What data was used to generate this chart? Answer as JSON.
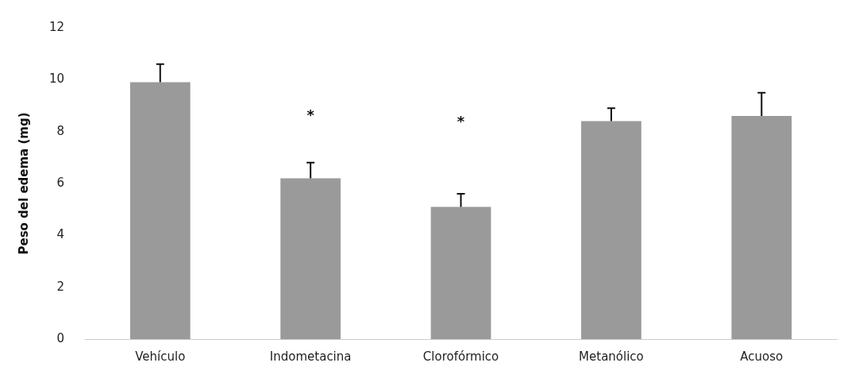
{
  "chart_data": {
    "type": "bar",
    "ylabel": "Peso del edema (mg)",
    "categories": [
      "Vehículo",
      "Indometacina",
      "Clorofórmico",
      "Metanólico",
      "Acuoso"
    ],
    "values": [
      9.9,
      6.2,
      5.1,
      8.4,
      8.6
    ],
    "errors": [
      [
        9.9,
        10.6
      ],
      [
        6.2,
        6.8
      ],
      [
        5.1,
        5.6
      ],
      [
        8.4,
        8.9
      ],
      [
        8.6,
        9.5
      ]
    ],
    "color": "#9a9a9a",
    "ylim": [
      0,
      12
    ],
    "yticks": [
      0,
      2,
      4,
      6,
      8,
      10,
      12
    ],
    "grid": false,
    "legend": false,
    "annotations": [
      "*",
      "*"
    ]
  }
}
